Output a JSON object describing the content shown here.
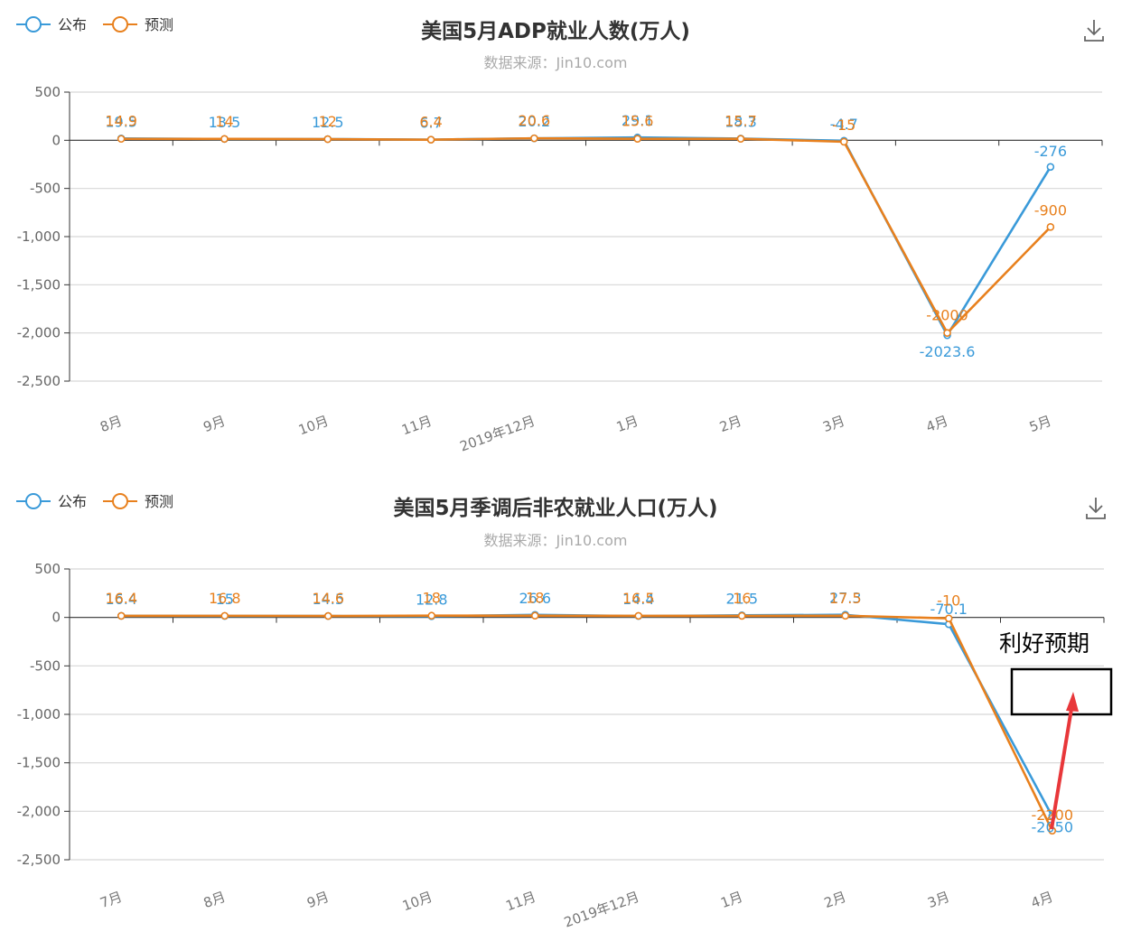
{
  "chart_data": [
    {
      "type": "line",
      "title": "美国5月ADP就业人数(万人)",
      "subtitle": "数据来源：Jin10.com",
      "categories": [
        "8月",
        "9月",
        "10月",
        "11月",
        "2019年12月",
        "1月",
        "2月",
        "3月",
        "4月",
        "5月"
      ],
      "series": [
        {
          "name": "公布",
          "color": "#3a9ad9",
          "values": [
            19.5,
            13.5,
            12.5,
            6.7,
            20.2,
            29.1,
            18.3,
            -4.7,
            -2023.6,
            -276
          ]
        },
        {
          "name": "预测",
          "color": "#e8801d",
          "values": [
            14.9,
            14.0,
            12.0,
            6.4,
            20.6,
            15.6,
            15.7,
            -15.0,
            -2000,
            -900
          ]
        }
      ],
      "ylim": [
        -2500,
        500
      ],
      "yticks": [
        500,
        0,
        -500,
        -1000,
        -1500,
        -2000,
        -2500
      ],
      "ytick_labels": [
        "500",
        "0",
        "-500",
        "-1,000",
        "-1,500",
        "-2,000",
        "-2,500"
      ],
      "legend": "top-left",
      "grid": true
    },
    {
      "type": "line",
      "title": "美国5月季调后非农就业人口(万人)",
      "subtitle": "数据来源：Jin10.com",
      "categories": [
        "7月",
        "8月",
        "9月",
        "10月",
        "11月",
        "2019年12月",
        "1月",
        "2月",
        "3月",
        "4月"
      ],
      "series": [
        {
          "name": "公布",
          "color": "#3a9ad9",
          "values": [
            16.4,
            15.0,
            14.5,
            12.8,
            26.6,
            14.4,
            21.5,
            27.3,
            -70.1,
            -2050
          ]
        },
        {
          "name": "预测",
          "color": "#e8801d",
          "values": [
            16.4,
            16.8,
            14.6,
            18.0,
            18.0,
            16.5,
            16.0,
            17.5,
            -10,
            -2200
          ]
        }
      ],
      "ylim": [
        -2500,
        500
      ],
      "yticks": [
        500,
        0,
        -500,
        -1000,
        -1500,
        -2000,
        -2500
      ],
      "ytick_labels": [
        "500",
        "0",
        "-500",
        "-1,000",
        "-1,500",
        "-2,000",
        "-2,500"
      ],
      "legend": "top-left",
      "grid": true
    }
  ],
  "labels": [
    {
      "ticks": [
        "8月",
        "9月",
        "10月",
        "11月",
        "2019年12月",
        "1月",
        "2月",
        "3月",
        "4月",
        "5月"
      ],
      "pub": [
        "19.5",
        "13.5",
        "12.5",
        "6.7",
        "20.2",
        "29.1",
        "18.3",
        "-4.7",
        "-2023.6",
        "-276"
      ],
      "fc": [
        "14.9",
        "14",
        "12",
        "6.4",
        "20.6",
        "15.6",
        "15.7",
        "-15",
        "-2000",
        "-900"
      ]
    },
    {
      "ticks": [
        "7月",
        "8月",
        "9月",
        "10月",
        "11月",
        "2019年12月",
        "1月",
        "2月",
        "3月",
        "4月"
      ],
      "pub": [
        "16.4",
        "15",
        "14.5",
        "12.8",
        "26.6",
        "14.4",
        "21.5",
        "27.3",
        "-70.1",
        "-2050"
      ],
      "fc": [
        "16.4",
        "16.8",
        "14.6",
        "18",
        "18",
        "16.5",
        "16",
        "17.5",
        "-10",
        "-2200"
      ]
    }
  ],
  "annotation": {
    "text": "利好预期",
    "box_color": "#000000",
    "arrow_color": "#e8373a"
  },
  "icons": {
    "download": "download-icon",
    "legend_marker": "legend-line-circle-icon"
  }
}
